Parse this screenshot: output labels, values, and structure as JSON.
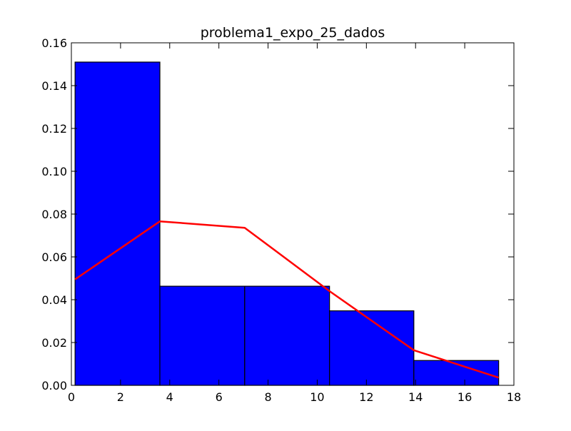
{
  "chart_data": {
    "type": "bar",
    "title": "problema1_expo_25_dados",
    "xlabel": "",
    "ylabel": "",
    "xlim": [
      0,
      18
    ],
    "ylim": [
      0,
      0.16
    ],
    "x_ticks": [
      0,
      2,
      4,
      6,
      8,
      10,
      12,
      14,
      16,
      18
    ],
    "x_tick_labels": [
      "0",
      "2",
      "4",
      "6",
      "8",
      "10",
      "12",
      "14",
      "16",
      "18"
    ],
    "y_ticks": [
      0,
      0.02,
      0.04,
      0.06,
      0.08,
      0.1,
      0.12,
      0.14,
      0.16
    ],
    "y_tick_labels": [
      "0.00",
      "0.02",
      "0.04",
      "0.06",
      "0.08",
      "0.10",
      "0.12",
      "0.14",
      "0.16"
    ],
    "grid": false,
    "bars": {
      "type": "histogram",
      "color": "#0000ff",
      "edge_color": "#000000",
      "bin_edges": [
        0.15,
        3.6,
        7.05,
        10.5,
        13.93,
        17.38
      ],
      "values": [
        0.151,
        0.0463,
        0.0463,
        0.0348,
        0.0116
      ]
    },
    "line": {
      "type": "line",
      "color": "#ff0000",
      "x": [
        0.15,
        3.6,
        7.05,
        10.5,
        13.93,
        17.38
      ],
      "y": [
        0.0495,
        0.0766,
        0.0736,
        0.044,
        0.0164,
        0.0036
      ]
    }
  }
}
